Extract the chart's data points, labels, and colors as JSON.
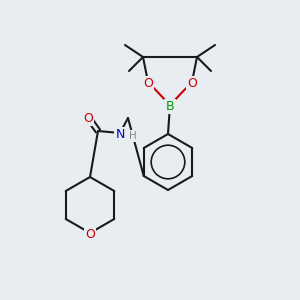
{
  "background_color": "#e8edf2",
  "bond_color": "#1a1a1a",
  "bond_width": 1.5,
  "atom_colors": {
    "O": "#cc0000",
    "N": "#0000cc",
    "B": "#009900",
    "H": "#888888",
    "C": "#1a1a1a"
  },
  "font_size": 9,
  "font_size_small": 7.5
}
